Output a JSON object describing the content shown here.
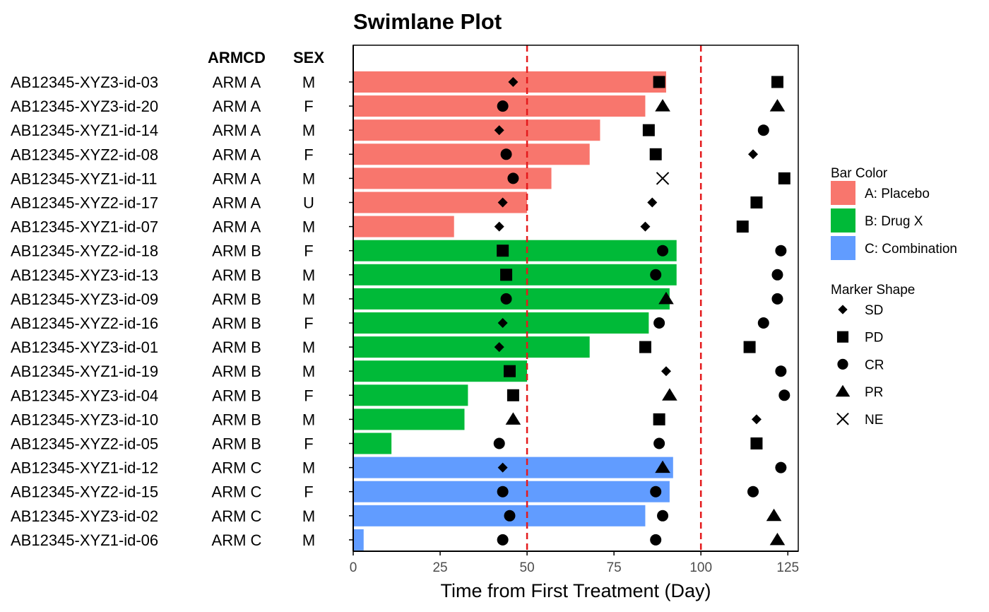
{
  "chart_data": {
    "type": "bar",
    "orientation": "horizontal",
    "title": "Swimlane Plot",
    "xlabel": "Time from First Treatment (Day)",
    "xlim": [
      0,
      128
    ],
    "xticks": [
      0,
      25,
      50,
      75,
      100,
      125
    ],
    "reference_lines": [
      50,
      100
    ],
    "reference_line_color": "#e41a1c",
    "table_headers": {
      "armcd": "ARMCD",
      "sex": "SEX"
    },
    "bar_colors": {
      "A: Placebo": "#f8766d",
      "B: Drug X": "#00ba38",
      "C: Combination": "#619cff"
    },
    "legend": {
      "position": "right",
      "bar_title": "Bar Color",
      "bar_items": [
        "A: Placebo",
        "B: Drug X",
        "C: Combination"
      ],
      "marker_title": "Marker Shape",
      "marker_items": [
        {
          "label": "SD",
          "shape": "diamond"
        },
        {
          "label": "PD",
          "shape": "square"
        },
        {
          "label": "CR",
          "shape": "circle"
        },
        {
          "label": "PR",
          "shape": "triangle"
        },
        {
          "label": "NE",
          "shape": "cross"
        }
      ]
    },
    "rows": [
      {
        "id": "AB12345-XYZ3-id-03",
        "armcd": "ARM A",
        "sex": "M",
        "group": "A: Placebo",
        "value": 90,
        "markers": [
          {
            "x": 46,
            "shape": "SD"
          },
          {
            "x": 88,
            "shape": "PD"
          },
          {
            "x": 122,
            "shape": "PD"
          }
        ]
      },
      {
        "id": "AB12345-XYZ3-id-20",
        "armcd": "ARM A",
        "sex": "F",
        "group": "A: Placebo",
        "value": 84,
        "markers": [
          {
            "x": 43,
            "shape": "CR"
          },
          {
            "x": 89,
            "shape": "PR"
          },
          {
            "x": 122,
            "shape": "PR"
          }
        ]
      },
      {
        "id": "AB12345-XYZ1-id-14",
        "armcd": "ARM A",
        "sex": "M",
        "group": "A: Placebo",
        "value": 71,
        "markers": [
          {
            "x": 42,
            "shape": "SD"
          },
          {
            "x": 85,
            "shape": "PD"
          },
          {
            "x": 118,
            "shape": "CR"
          }
        ]
      },
      {
        "id": "AB12345-XYZ2-id-08",
        "armcd": "ARM A",
        "sex": "F",
        "group": "A: Placebo",
        "value": 68,
        "markers": [
          {
            "x": 44,
            "shape": "CR"
          },
          {
            "x": 87,
            "shape": "PD"
          },
          {
            "x": 115,
            "shape": "SD"
          }
        ]
      },
      {
        "id": "AB12345-XYZ1-id-11",
        "armcd": "ARM A",
        "sex": "M",
        "group": "A: Placebo",
        "value": 57,
        "markers": [
          {
            "x": 46,
            "shape": "CR"
          },
          {
            "x": 89,
            "shape": "NE"
          },
          {
            "x": 124,
            "shape": "PD"
          }
        ]
      },
      {
        "id": "AB12345-XYZ2-id-17",
        "armcd": "ARM A",
        "sex": "U",
        "group": "A: Placebo",
        "value": 50,
        "markers": [
          {
            "x": 43,
            "shape": "SD"
          },
          {
            "x": 86,
            "shape": "SD"
          },
          {
            "x": 116,
            "shape": "PD"
          }
        ]
      },
      {
        "id": "AB12345-XYZ1-id-07",
        "armcd": "ARM A",
        "sex": "M",
        "group": "A: Placebo",
        "value": 29,
        "markers": [
          {
            "x": 42,
            "shape": "SD"
          },
          {
            "x": 84,
            "shape": "SD"
          },
          {
            "x": 112,
            "shape": "PD"
          }
        ]
      },
      {
        "id": "AB12345-XYZ2-id-18",
        "armcd": "ARM B",
        "sex": "F",
        "group": "B: Drug X",
        "value": 93,
        "markers": [
          {
            "x": 43,
            "shape": "PD"
          },
          {
            "x": 89,
            "shape": "CR"
          },
          {
            "x": 123,
            "shape": "CR"
          }
        ]
      },
      {
        "id": "AB12345-XYZ3-id-13",
        "armcd": "ARM B",
        "sex": "M",
        "group": "B: Drug X",
        "value": 93,
        "markers": [
          {
            "x": 44,
            "shape": "PD"
          },
          {
            "x": 87,
            "shape": "CR"
          },
          {
            "x": 122,
            "shape": "CR"
          }
        ]
      },
      {
        "id": "AB12345-XYZ3-id-09",
        "armcd": "ARM B",
        "sex": "M",
        "group": "B: Drug X",
        "value": 91,
        "markers": [
          {
            "x": 44,
            "shape": "CR"
          },
          {
            "x": 90,
            "shape": "PR"
          },
          {
            "x": 122,
            "shape": "CR"
          }
        ]
      },
      {
        "id": "AB12345-XYZ2-id-16",
        "armcd": "ARM B",
        "sex": "F",
        "group": "B: Drug X",
        "value": 85,
        "markers": [
          {
            "x": 43,
            "shape": "SD"
          },
          {
            "x": 88,
            "shape": "CR"
          },
          {
            "x": 118,
            "shape": "CR"
          }
        ]
      },
      {
        "id": "AB12345-XYZ3-id-01",
        "armcd": "ARM B",
        "sex": "M",
        "group": "B: Drug X",
        "value": 68,
        "markers": [
          {
            "x": 42,
            "shape": "SD"
          },
          {
            "x": 84,
            "shape": "PD"
          },
          {
            "x": 114,
            "shape": "PD"
          }
        ]
      },
      {
        "id": "AB12345-XYZ1-id-19",
        "armcd": "ARM B",
        "sex": "M",
        "group": "B: Drug X",
        "value": 50,
        "markers": [
          {
            "x": 45,
            "shape": "PD"
          },
          {
            "x": 90,
            "shape": "SD"
          },
          {
            "x": 123,
            "shape": "CR"
          }
        ]
      },
      {
        "id": "AB12345-XYZ3-id-04",
        "armcd": "ARM B",
        "sex": "F",
        "group": "B: Drug X",
        "value": 33,
        "markers": [
          {
            "x": 46,
            "shape": "PD"
          },
          {
            "x": 91,
            "shape": "PR"
          },
          {
            "x": 124,
            "shape": "CR"
          }
        ]
      },
      {
        "id": "AB12345-XYZ3-id-10",
        "armcd": "ARM B",
        "sex": "M",
        "group": "B: Drug X",
        "value": 32,
        "markers": [
          {
            "x": 46,
            "shape": "PR"
          },
          {
            "x": 88,
            "shape": "PD"
          },
          {
            "x": 116,
            "shape": "SD"
          }
        ]
      },
      {
        "id": "AB12345-XYZ2-id-05",
        "armcd": "ARM B",
        "sex": "F",
        "group": "B: Drug X",
        "value": 11,
        "markers": [
          {
            "x": 42,
            "shape": "CR"
          },
          {
            "x": 88,
            "shape": "CR"
          },
          {
            "x": 116,
            "shape": "PD"
          }
        ]
      },
      {
        "id": "AB12345-XYZ1-id-12",
        "armcd": "ARM C",
        "sex": "M",
        "group": "C: Combination",
        "value": 92,
        "markers": [
          {
            "x": 43,
            "shape": "SD"
          },
          {
            "x": 89,
            "shape": "PR"
          },
          {
            "x": 123,
            "shape": "CR"
          }
        ]
      },
      {
        "id": "AB12345-XYZ2-id-15",
        "armcd": "ARM C",
        "sex": "F",
        "group": "C: Combination",
        "value": 91,
        "markers": [
          {
            "x": 43,
            "shape": "CR"
          },
          {
            "x": 87,
            "shape": "CR"
          },
          {
            "x": 115,
            "shape": "CR"
          }
        ]
      },
      {
        "id": "AB12345-XYZ3-id-02",
        "armcd": "ARM C",
        "sex": "M",
        "group": "C: Combination",
        "value": 84,
        "markers": [
          {
            "x": 45,
            "shape": "CR"
          },
          {
            "x": 89,
            "shape": "CR"
          },
          {
            "x": 121,
            "shape": "PR"
          }
        ]
      },
      {
        "id": "AB12345-XYZ1-id-06",
        "armcd": "ARM C",
        "sex": "M",
        "group": "C: Combination",
        "value": 3,
        "markers": [
          {
            "x": 43,
            "shape": "CR"
          },
          {
            "x": 87,
            "shape": "CR"
          },
          {
            "x": 122,
            "shape": "PR"
          }
        ]
      }
    ]
  }
}
